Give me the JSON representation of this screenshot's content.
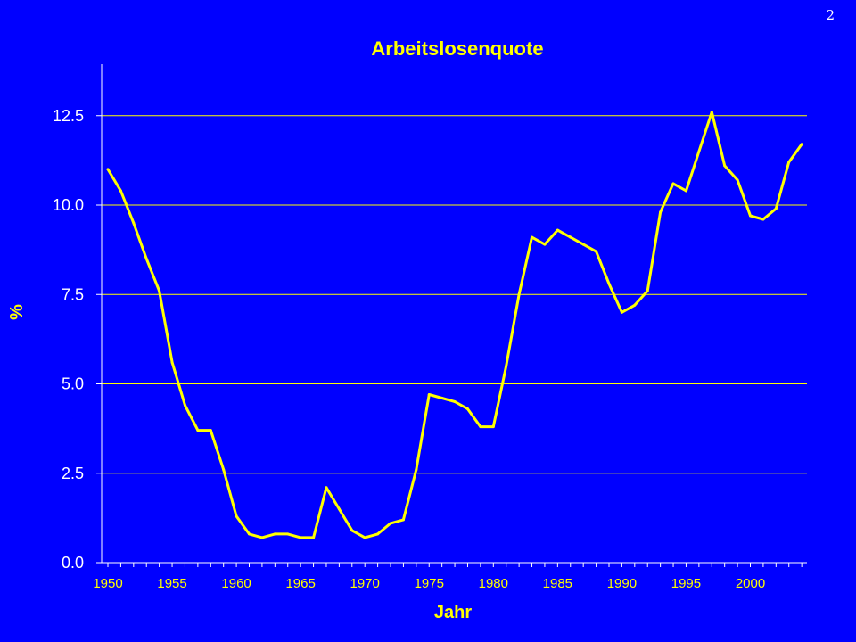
{
  "page": {
    "number": "2"
  },
  "colors": {
    "background": "#0000FF",
    "line": "#FFFF00",
    "grid": "#FFFF00",
    "axis": "#FFFFFF"
  },
  "chart_data": {
    "type": "line",
    "title": "Arbeitslosenquote",
    "xlabel": "Jahr",
    "ylabel": "%",
    "ylim": [
      0,
      14
    ],
    "xlim": [
      1950,
      2005
    ],
    "y_ticks": [
      "0.0",
      "2.5",
      "5.0",
      "7.5",
      "10.0",
      "12.5"
    ],
    "x_ticks": [
      "1950",
      "1955",
      "1960",
      "1965",
      "1970",
      "1975",
      "1980",
      "1985",
      "1990",
      "1995",
      "2000"
    ],
    "grid": true,
    "legend": "none",
    "series": [
      {
        "x": [
          1950,
          1951,
          1952,
          1953,
          1954,
          1955,
          1956,
          1957,
          1958,
          1959,
          1960,
          1961,
          1962,
          1963,
          1964,
          1965,
          1966,
          1967,
          1968,
          1969,
          1970,
          1971,
          1972,
          1973,
          1974,
          1975,
          1976,
          1977,
          1978,
          1979,
          1980,
          1981,
          1982,
          1983,
          1984,
          1985,
          1986,
          1987,
          1988,
          1989,
          1990,
          1991,
          1992,
          1993,
          1994,
          1995,
          1996,
          1997,
          1998,
          1999,
          2000,
          2001,
          2002,
          2003,
          2004
        ],
        "values": [
          11.0,
          10.4,
          9.5,
          8.5,
          7.6,
          5.6,
          4.4,
          3.7,
          3.7,
          2.6,
          1.3,
          0.8,
          0.7,
          0.8,
          0.8,
          0.7,
          0.7,
          2.1,
          1.5,
          0.9,
          0.7,
          0.8,
          1.1,
          1.2,
          2.6,
          4.7,
          4.6,
          4.5,
          4.3,
          3.8,
          3.8,
          5.5,
          7.5,
          9.1,
          8.9,
          9.3,
          9.1,
          8.9,
          8.7,
          7.8,
          7.0,
          7.2,
          7.6,
          9.8,
          10.6,
          10.4,
          11.5,
          12.6,
          11.1,
          10.7,
          9.7,
          9.6,
          9.9,
          11.2,
          11.7
        ]
      }
    ]
  }
}
